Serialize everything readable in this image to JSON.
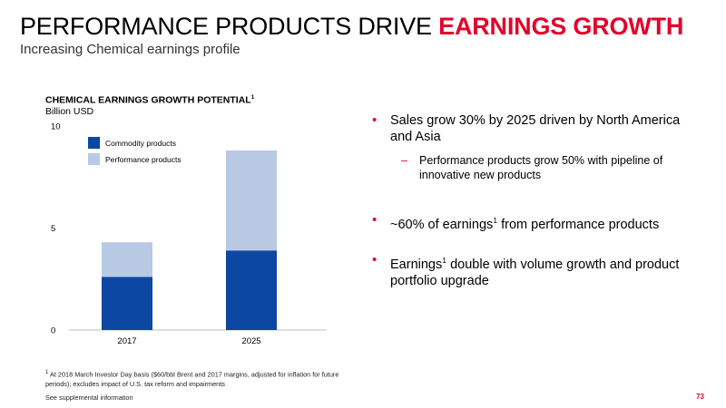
{
  "header": {
    "title_main": "PERFORMANCE PRODUCTS DRIVE ",
    "title_accent": "EARNINGS GROWTH",
    "subtitle": "Increasing Chemical earnings profile"
  },
  "chart_data": {
    "type": "bar",
    "stacked": true,
    "title": "CHEMICAL EARNINGS GROWTH POTENTIAL",
    "title_sup": "1",
    "ylabel": "Billion USD",
    "categories": [
      "2017",
      "2025"
    ],
    "series": [
      {
        "name": "Commodity products",
        "values": [
          2.6,
          3.9
        ],
        "color": "#0c47a1"
      },
      {
        "name": "Performance products",
        "values": [
          1.7,
          4.9
        ],
        "color": "#b8cae3"
      }
    ],
    "ylim": [
      0,
      10
    ],
    "yticks": [
      "0",
      "5",
      "10"
    ],
    "grid": false,
    "legend_position": "top-left"
  },
  "bullets": [
    {
      "text": "Sales grow 30% by 2025 driven by North America and Asia",
      "sub": "Performance products grow 50% with pipeline of innovative new products"
    },
    {
      "pre": "~60% of earnings",
      "sup": "1",
      "post": " from performance products"
    },
    {
      "pre": "Earnings",
      "sup": "1",
      "post": " double with volume growth and product portfolio upgrade"
    }
  ],
  "footer": {
    "footnote_sup": "1",
    "footnote": " At 2018 March Investor Day basis ($60/bbl Brent and 2017 margins, adjusted for inflation for future periods); excludes impact of U.S. tax reform and impairments",
    "supplemental": "See supplemental information",
    "page_number": "73"
  },
  "colors": {
    "accent": "#e4002b"
  }
}
